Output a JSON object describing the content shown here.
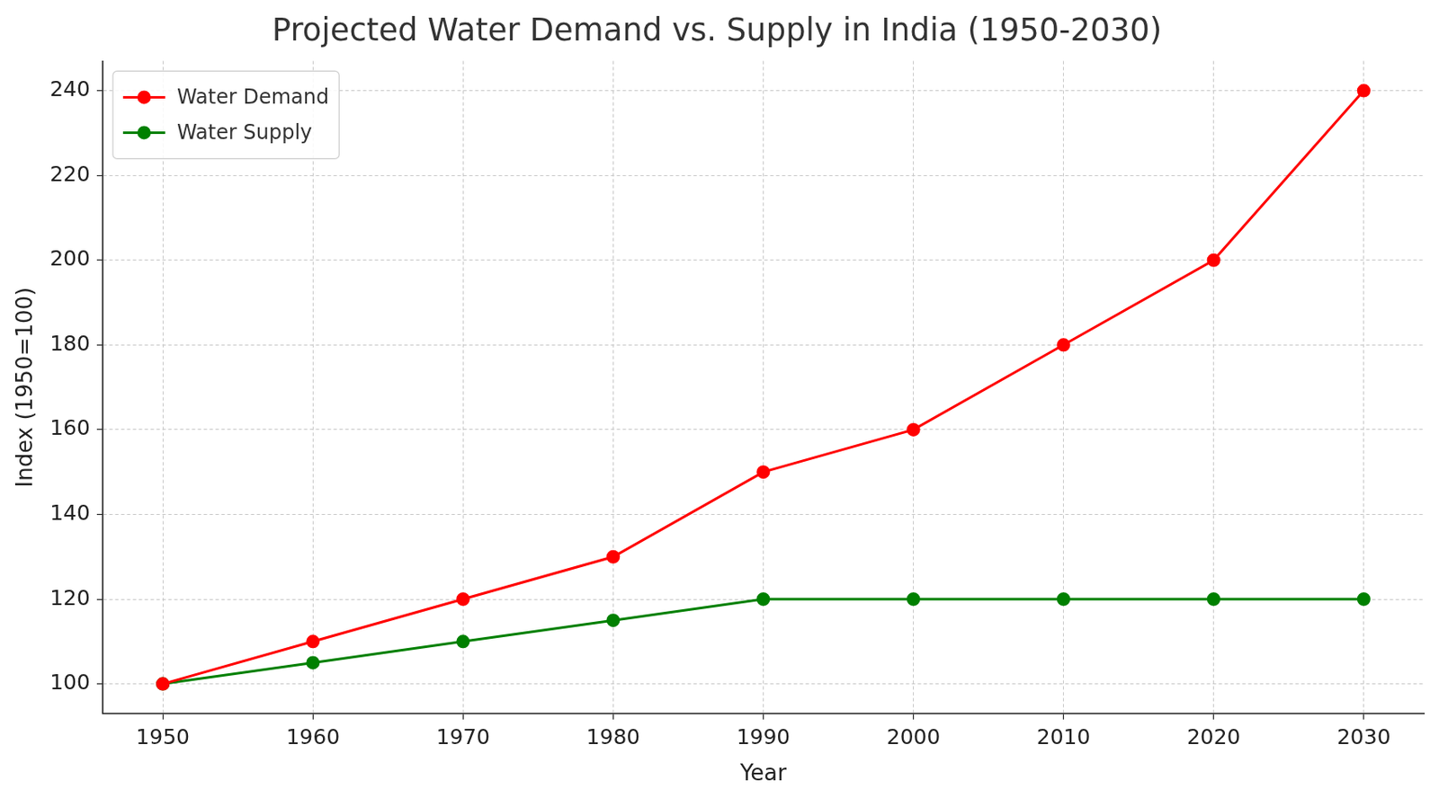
{
  "chart_data": {
    "type": "line",
    "title": "Projected Water Demand vs. Supply in India (1950-2030)",
    "x_label": "Year",
    "y_label": "Index (1950=100)",
    "x": [
      1950,
      1960,
      1970,
      1980,
      1990,
      2000,
      2010,
      2020,
      2030
    ],
    "series": [
      {
        "name": "Water Demand",
        "color": "#ff0000",
        "marker": "circle",
        "line_style": "solid",
        "values": [
          100,
          110,
          120,
          130,
          150,
          160,
          180,
          200,
          240
        ]
      },
      {
        "name": "Water Supply",
        "color": "#008000",
        "marker": "circle",
        "line_style": "solid",
        "values": [
          100,
          105,
          110,
          115,
          120,
          120,
          120,
          120,
          120
        ]
      }
    ],
    "xlim": [
      1946,
      2034
    ],
    "xticks": [
      1950,
      1960,
      1970,
      1980,
      1990,
      2000,
      2010,
      2020,
      2030
    ],
    "ylim": [
      93,
      247
    ],
    "yticks": [
      100,
      120,
      140,
      160,
      180,
      200,
      220,
      240
    ],
    "grid": true,
    "legend": "upper left"
  }
}
